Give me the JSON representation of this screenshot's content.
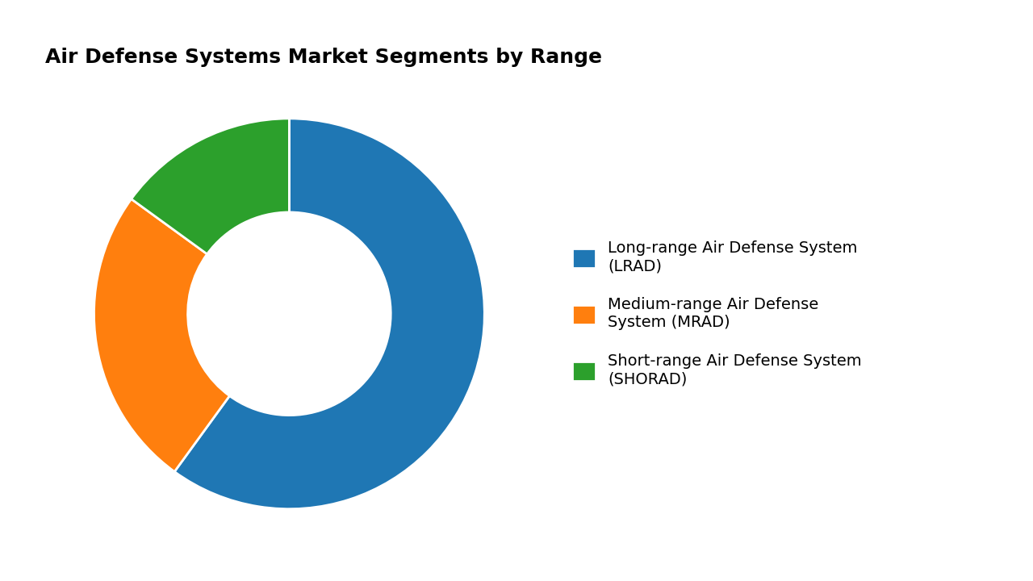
{
  "chart_data": {
    "type": "pie",
    "title": "Air Defense Systems Market Segments by Range",
    "categories": [
      "Long-range Air Defense System\n(LRAD)",
      "Medium-range Air Defense\nSystem (MRAD)",
      "Short-range Air Defense System\n(SHORAD)"
    ],
    "values": [
      60,
      25,
      15
    ],
    "legend": "center left"
  }
}
